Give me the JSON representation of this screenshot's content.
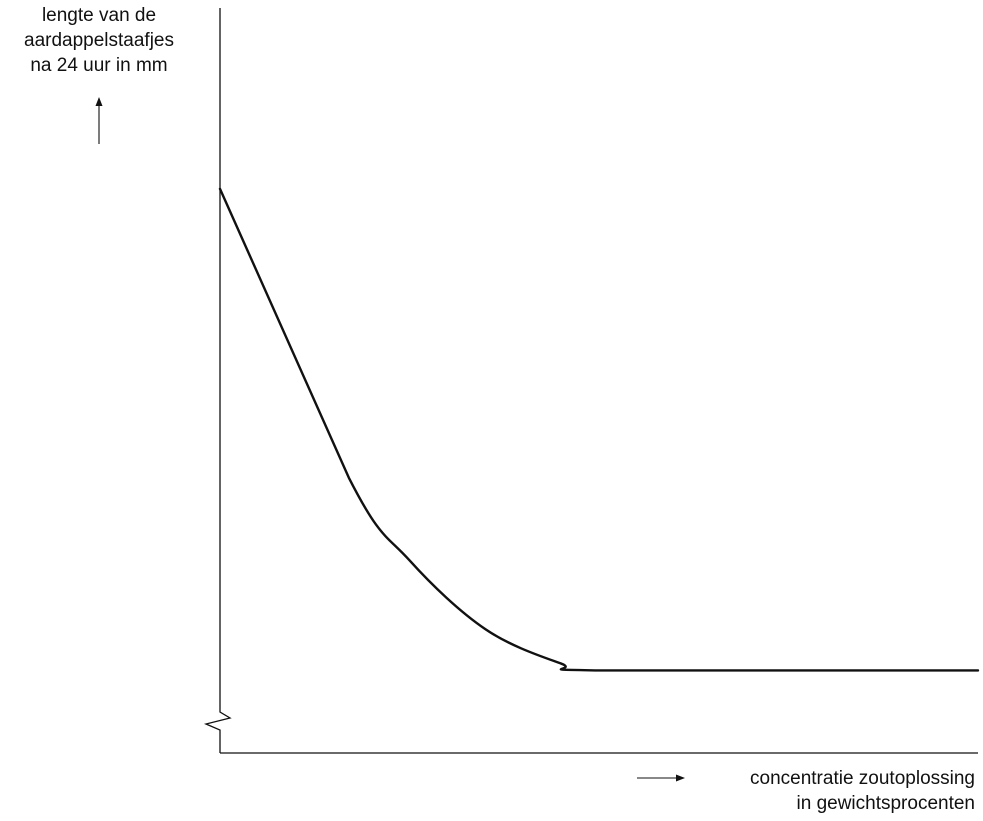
{
  "chart_data": {
    "type": "line",
    "title": "",
    "ylabel_lines": [
      "lengte van de",
      "aardappelstaafjes",
      "na 24 uur in mm"
    ],
    "xlabel_lines": [
      "concentratie zoutoplossing",
      "in gewichtsprocenten"
    ],
    "xlim": [
      0,
      10
    ],
    "ylim": [
      0,
      10
    ],
    "grid": false,
    "y_axis_break": true,
    "series": [
      {
        "values_description": "qualitative curve, no numeric ticks",
        "x": [
          0,
          1.7,
          2.5,
          3.5,
          4.5,
          5.0,
          10.0
        ],
        "y": [
          8.2,
          4.0,
          2.8,
          1.8,
          1.3,
          1.2,
          1.2
        ]
      }
    ]
  }
}
